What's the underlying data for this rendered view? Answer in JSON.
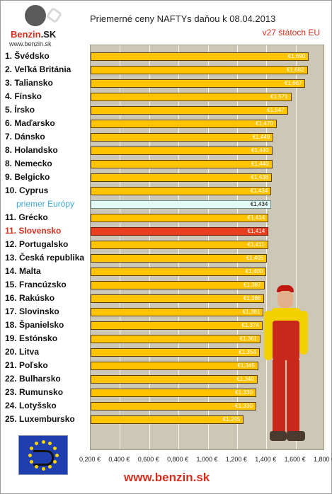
{
  "logo": {
    "brand_part1": "Benzin",
    "brand_part2": ".SK",
    "url": "www.benzin.sk"
  },
  "title": "Priemerné ceny NAFTYs daňou k 08.04.2013",
  "subtitle": "v27 štátoch EU",
  "footer": "www.benzin.sk",
  "colors": {
    "bar": "#ffc400",
    "average_bar": "#e3fbf6",
    "highlight_bar": "#e8401e",
    "plot_background": "#cdc7b7",
    "accent_red": "#d32f1f",
    "average_label": "#3fa9d8"
  },
  "chart_data": {
    "type": "bar",
    "orientation": "horizontal",
    "title": "Priemerné ceny NAFTYs daňou k 08.04.2013",
    "subtitle": "v27 štátoch EU",
    "xlim": [
      0.2,
      1.8
    ],
    "x_ticks": [
      "0,200 €",
      "0,400 €",
      "0,600 €",
      "0,800 €",
      "1,000 €",
      "1,200 €",
      "1,400 €",
      "1,600 €",
      "1,800 €"
    ],
    "grid": true,
    "categories": [
      "1. Švédsko",
      "2. Veľká Británia",
      "3. Taliansko",
      "4. Fínsko",
      "5. Írsko",
      "6. Maďarsko",
      "7. Dánsko",
      "8. Holandsko",
      "8. Nemecko",
      "9. Belgicko",
      "10. Cyprus",
      "priemer Európy",
      "11. Grécko",
      "11. Slovensko",
      "12. Portugalsko",
      "13. Česká republika",
      "14. Malta",
      "15. Francúzsko",
      "16. Rakúsko",
      "17. Slovinsko",
      "18. Španielsko",
      "19. Estónsko",
      "20. Litva",
      "21. Poľsko",
      "22. Bulharsko",
      "23. Rumunsko",
      "24. Lotyšsko",
      "25. Luxembursko"
    ],
    "values": [
      1.69,
      1.682,
      1.667,
      1.571,
      1.547,
      1.47,
      1.449,
      1.44,
      1.44,
      1.438,
      1.434,
      1.434,
      1.414,
      1.414,
      1.411,
      1.405,
      1.4,
      1.387,
      1.386,
      1.381,
      1.374,
      1.361,
      1.354,
      1.345,
      1.34,
      1.33,
      1.33,
      1.245
    ],
    "value_labels": [
      "€1,690",
      "€1,682",
      "€1,667",
      "€1,571",
      "€1,547",
      "€1,470",
      "€1,449",
      "€1,440",
      "€1,440",
      "€1,438",
      "€1,434",
      "€1,434",
      "€1,414",
      "€1,414",
      "€1,411",
      "€1,405",
      "€1,400",
      "€1,387",
      "€1,386",
      "€1,381",
      "€1,374",
      "€1,361",
      "€1,354",
      "€1,345",
      "€1,340",
      "€1,330",
      "€1,330",
      "€1,245"
    ],
    "average_index": 11,
    "highlight_index": 13
  }
}
